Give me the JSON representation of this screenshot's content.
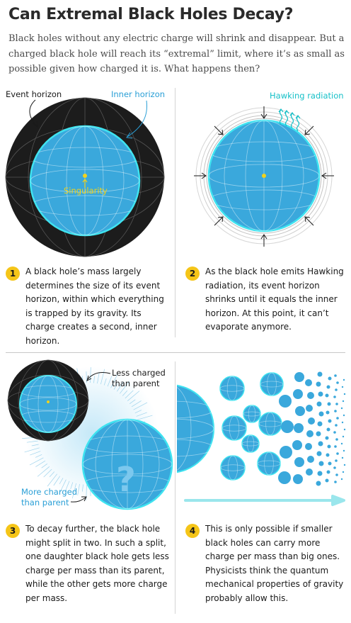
{
  "title": "Can Extremal Black Holes Decay?",
  "intro": "Black holes without any electric charge will shrink and disappear. But a charged black hole will reach its “extremal” limit, where it’s as small as possible given how charged it is. What happens then?",
  "panel1": {
    "event_horizon_label": "Event horizon",
    "inner_horizon_label": "Inner horizon",
    "singularity_label": "Singularity"
  },
  "panel2": {
    "hawking_label": "Hawking radiation"
  },
  "panel3": {
    "less_charged_line1": "Less charged",
    "less_charged_line2": "than parent",
    "more_charged_line1": "More charged",
    "more_charged_line2": "than parent",
    "question_mark": "?"
  },
  "steps": [
    {
      "number": "1",
      "text": "A black hole’s mass largely determines the size of its event horizon, within which everything is trapped by its gravity. Its charge creates a second, inner horizon."
    },
    {
      "number": "2",
      "text": "As the black hole emits Hawking radiation, its event horizon shrinks until it equals the inner horizon. At this point, it can’t evaporate anymore."
    },
    {
      "number": "3",
      "text": "To decay further, the black hole might split in two. In such a split, one daughter black hole gets less charge per mass than its parent, while the other gets more charge per mass."
    },
    {
      "number": "4",
      "text": "This is only possible if smaller black holes can carry more charge per mass than big ones. Physicists think the quantum mechanical properties of gravity probably allow this."
    }
  ],
  "colors": {
    "sphere_blue": "#3aa8dc",
    "horizon_cyan": "#3fe3f0",
    "black_shell": "#1c1c1c",
    "badge_yellow": "#f5c518",
    "singularity_yellow": "#f2d21b",
    "label_blue": "#2a9fd6",
    "hawking_cyan": "#16c0c8"
  }
}
